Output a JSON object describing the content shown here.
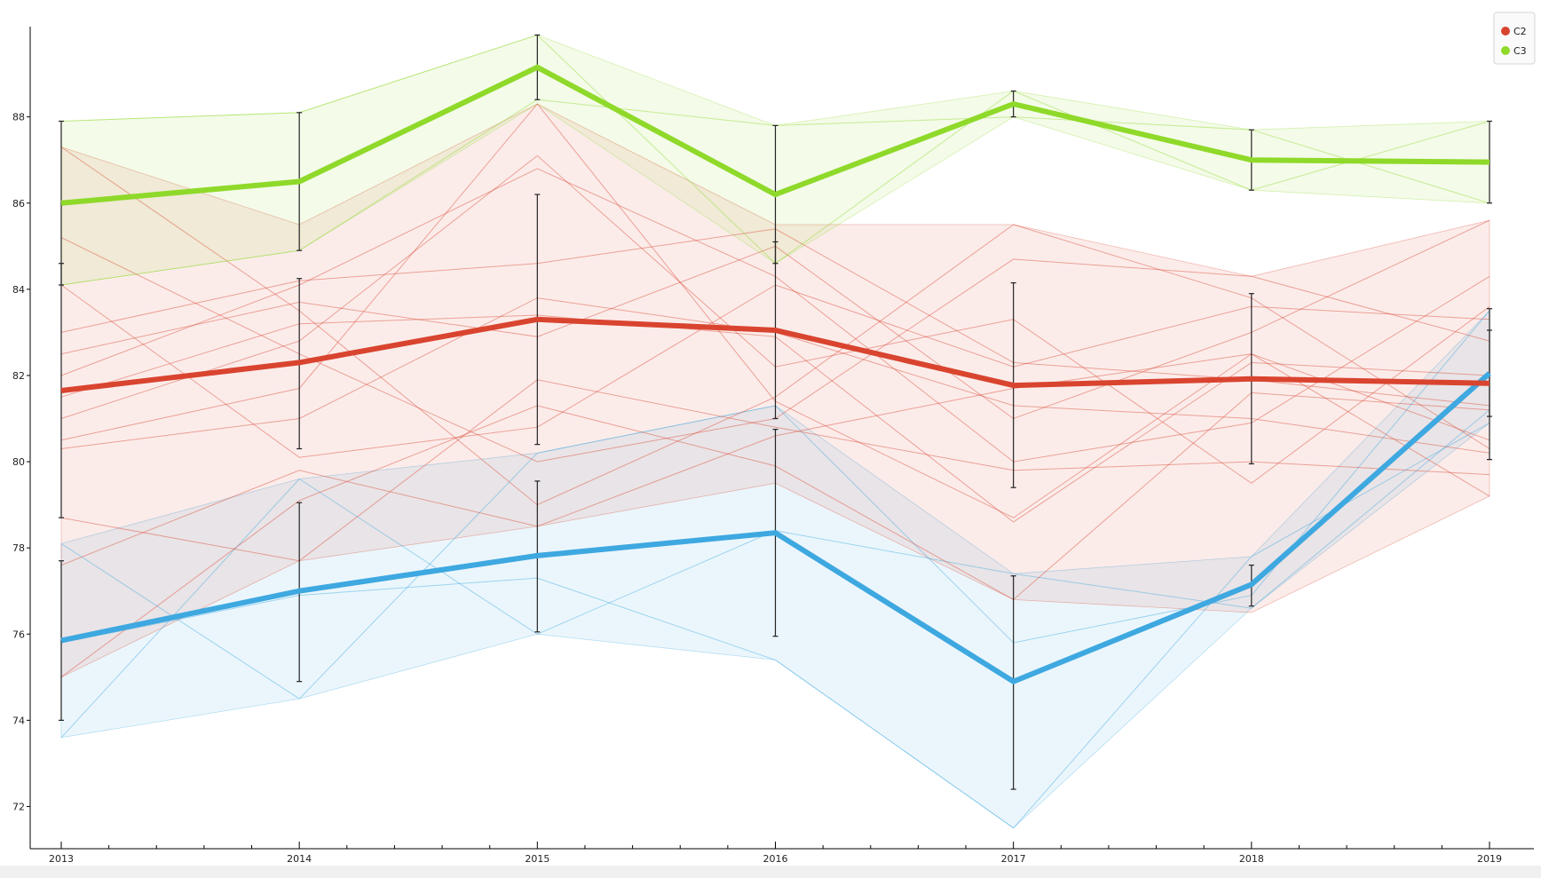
{
  "chart_data": {
    "type": "line",
    "x": [
      "2013",
      "2014",
      "2015",
      "2016",
      "2017",
      "2018",
      "2019"
    ],
    "ylim": [
      71,
      90.3
    ],
    "y_ticks": [
      72,
      74,
      76,
      78,
      80,
      82,
      84,
      86,
      88
    ],
    "grid": false,
    "legend_position": "top-right",
    "series": [
      {
        "name": "C2",
        "color": "#d9442f",
        "mean": [
          81.65,
          82.3,
          83.3,
          83.05,
          81.77,
          81.92,
          81.82
        ],
        "err_low": [
          78.7,
          80.3,
          80.4,
          81.0,
          79.4,
          79.95,
          80.05
        ],
        "err_high": [
          84.6,
          84.25,
          86.2,
          85.1,
          84.15,
          83.9,
          83.55
        ],
        "band_low": [
          75.0,
          77.7,
          78.5,
          79.5,
          76.8,
          76.5,
          79.2
        ],
        "band_high": [
          87.3,
          85.5,
          88.3,
          85.5,
          85.5,
          84.3,
          85.6
        ],
        "individual": [
          [
            87.3,
            83.5,
            79.0,
            81.5,
            85.5,
            83.8,
            80.3
          ],
          [
            85.2,
            82.5,
            80.0,
            81.0,
            84.7,
            84.3,
            82.8
          ],
          [
            84.1,
            80.1,
            80.8,
            84.1,
            82.2,
            83.6,
            83.3
          ],
          [
            83.0,
            84.2,
            84.6,
            85.4,
            82.3,
            81.9,
            81.3
          ],
          [
            82.5,
            83.7,
            82.9,
            85.0,
            81.0,
            83.0,
            85.6
          ],
          [
            82.0,
            84.1,
            86.8,
            84.3,
            80.0,
            80.9,
            84.3
          ],
          [
            81.5,
            83.2,
            83.4,
            82.9,
            78.6,
            82.3,
            82.0
          ],
          [
            81.0,
            82.8,
            87.1,
            82.2,
            83.3,
            79.5,
            83.6
          ],
          [
            80.5,
            81.7,
            88.3,
            81.4,
            78.7,
            82.5,
            80.5
          ],
          [
            80.3,
            81.0,
            83.8,
            83.0,
            81.3,
            81.0,
            80.2
          ],
          [
            78.7,
            77.7,
            81.9,
            80.8,
            79.8,
            80.0,
            79.7
          ],
          [
            77.6,
            79.8,
            78.5,
            80.6,
            81.7,
            82.5,
            79.2
          ],
          [
            75.0,
            79.1,
            81.3,
            79.9,
            76.8,
            81.6,
            81.2
          ]
        ]
      },
      {
        "name": "C3",
        "color": "#8fd92a",
        "mean": [
          86.0,
          86.5,
          89.15,
          86.2,
          88.3,
          87.0,
          86.95
        ],
        "err_low": [
          84.1,
          84.9,
          88.4,
          84.6,
          88.0,
          86.3,
          86.0
        ],
        "err_high": [
          87.9,
          88.1,
          89.9,
          87.8,
          88.6,
          87.7,
          87.9
        ],
        "band_low": [
          84.1,
          84.9,
          88.3,
          84.6,
          88.0,
          86.3,
          86.0
        ],
        "band_high": [
          87.9,
          88.1,
          89.9,
          87.8,
          88.6,
          87.7,
          87.9
        ],
        "individual": [
          [
            87.9,
            88.1,
            89.9,
            84.6,
            88.6,
            86.3,
            87.9
          ],
          [
            84.1,
            84.9,
            88.4,
            87.8,
            88.0,
            87.7,
            86.0
          ]
        ]
      },
      {
        "color": "#3ea8e0",
        "mean": [
          75.85,
          77.0,
          77.82,
          78.35,
          74.9,
          77.15,
          82.05
        ],
        "err_low": [
          74.0,
          74.9,
          76.05,
          75.95,
          72.4,
          76.65,
          81.05
        ],
        "err_high": [
          77.7,
          79.05,
          79.55,
          80.75,
          77.35,
          77.6,
          83.05
        ],
        "band_low": [
          73.6,
          74.5,
          76.0,
          75.4,
          71.5,
          76.6,
          80.9
        ],
        "band_high": [
          78.1,
          79.6,
          80.2,
          81.3,
          77.4,
          77.8,
          83.5
        ],
        "individual": [
          [
            78.1,
            74.5,
            80.2,
            81.3,
            75.8,
            76.9,
            83.5
          ],
          [
            73.6,
            79.6,
            76.0,
            78.4,
            77.4,
            76.6,
            81.2
          ],
          [
            75.8,
            76.9,
            77.3,
            75.4,
            71.5,
            77.8,
            80.9
          ]
        ]
      }
    ]
  }
}
